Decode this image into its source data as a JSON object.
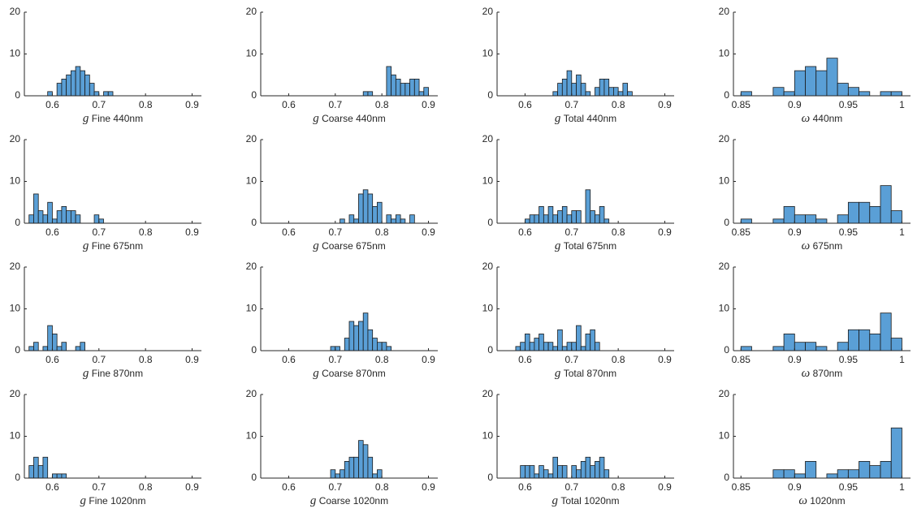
{
  "chart_data": [
    {
      "type": "histogram",
      "xlabel_symbol": "g",
      "xlabel": "Fine 440nm",
      "color": "#5a9fd6",
      "bins": [
        0.55,
        0.56,
        0.57,
        0.58,
        0.59,
        0.6,
        0.61,
        0.62,
        0.63,
        0.64,
        0.65,
        0.66,
        0.67,
        0.68,
        0.69,
        0.7,
        0.71,
        0.72,
        0.73,
        0.74,
        0.75,
        0.76,
        0.77,
        0.78,
        0.79,
        0.8,
        0.81,
        0.82,
        0.83,
        0.84,
        0.85,
        0.86,
        0.87,
        0.88,
        0.89,
        0.9,
        0.91
      ],
      "values": [
        0,
        0,
        0,
        0,
        1,
        0,
        3,
        4,
        5,
        6,
        7,
        6,
        5,
        3,
        1,
        0,
        1,
        1,
        0,
        0,
        0,
        0,
        0,
        0,
        0,
        0,
        0,
        0,
        0,
        0,
        0,
        0,
        0,
        0,
        0,
        0
      ],
      "xlim": [
        0.54,
        0.92
      ],
      "ylim": [
        0,
        20
      ],
      "xticks": [
        0.6,
        0.7,
        0.8,
        0.9
      ],
      "yticks": [
        0,
        10,
        20
      ]
    },
    {
      "type": "histogram",
      "xlabel_symbol": "g",
      "xlabel": "Coarse 440nm",
      "color": "#5a9fd6",
      "bins": [
        0.55,
        0.56,
        0.57,
        0.58,
        0.59,
        0.6,
        0.61,
        0.62,
        0.63,
        0.64,
        0.65,
        0.66,
        0.67,
        0.68,
        0.69,
        0.7,
        0.71,
        0.72,
        0.73,
        0.74,
        0.75,
        0.76,
        0.77,
        0.78,
        0.79,
        0.8,
        0.81,
        0.82,
        0.83,
        0.84,
        0.85,
        0.86,
        0.87,
        0.88,
        0.89,
        0.9,
        0.91
      ],
      "values": [
        0,
        0,
        0,
        0,
        0,
        0,
        0,
        0,
        0,
        0,
        0,
        0,
        0,
        0,
        0,
        0,
        0,
        0,
        0,
        0,
        0,
        1,
        1,
        0,
        0,
        0,
        7,
        5,
        4,
        3,
        3,
        4,
        4,
        1,
        2,
        0
      ],
      "xlim": [
        0.54,
        0.92
      ],
      "ylim": [
        0,
        20
      ],
      "xticks": [
        0.6,
        0.7,
        0.8,
        0.9
      ],
      "yticks": [
        0,
        10,
        20
      ]
    },
    {
      "type": "histogram",
      "xlabel_symbol": "g",
      "xlabel": "Total 440nm",
      "color": "#5a9fd6",
      "bins": [
        0.55,
        0.56,
        0.57,
        0.58,
        0.59,
        0.6,
        0.61,
        0.62,
        0.63,
        0.64,
        0.65,
        0.66,
        0.67,
        0.68,
        0.69,
        0.7,
        0.71,
        0.72,
        0.73,
        0.74,
        0.75,
        0.76,
        0.77,
        0.78,
        0.79,
        0.8,
        0.81,
        0.82,
        0.83,
        0.84,
        0.85,
        0.86,
        0.87,
        0.88,
        0.89,
        0.9,
        0.91
      ],
      "values": [
        0,
        0,
        0,
        0,
        0,
        0,
        0,
        0,
        0,
        0,
        0,
        1,
        3,
        4,
        6,
        3,
        5,
        3,
        1,
        0,
        2,
        4,
        4,
        2,
        2,
        1,
        3,
        1,
        0,
        0,
        0,
        0,
        0,
        0,
        0,
        0
      ],
      "xlim": [
        0.54,
        0.92
      ],
      "ylim": [
        0,
        20
      ],
      "xticks": [
        0.6,
        0.7,
        0.8,
        0.9
      ],
      "yticks": [
        0,
        10,
        20
      ]
    },
    {
      "type": "histogram",
      "xlabel_symbol": "ω",
      "xlabel": "440nm",
      "color": "#5a9fd6",
      "bins": [
        0.85,
        0.86,
        0.87,
        0.88,
        0.89,
        0.9,
        0.91,
        0.92,
        0.93,
        0.94,
        0.95,
        0.96,
        0.97,
        0.98,
        0.99,
        1.0,
        1.01
      ],
      "values": [
        1,
        0,
        0,
        2,
        1,
        6,
        7,
        6,
        9,
        3,
        2,
        1,
        0,
        1,
        1,
        0
      ],
      "xlim": [
        0.843,
        1.008
      ],
      "ylim": [
        0,
        20
      ],
      "xticks": [
        0.85,
        0.9,
        0.95,
        1
      ],
      "yticks": [
        0,
        10,
        20
      ]
    },
    {
      "type": "histogram",
      "xlabel_symbol": "g",
      "xlabel": "Fine 675nm",
      "color": "#5a9fd6",
      "bins": [
        0.55,
        0.56,
        0.57,
        0.58,
        0.59,
        0.6,
        0.61,
        0.62,
        0.63,
        0.64,
        0.65,
        0.66,
        0.67,
        0.68,
        0.69,
        0.7,
        0.71,
        0.72,
        0.73,
        0.74,
        0.75,
        0.76,
        0.77,
        0.78,
        0.79,
        0.8,
        0.81,
        0.82,
        0.83,
        0.84,
        0.85,
        0.86,
        0.87,
        0.88,
        0.89,
        0.9,
        0.91
      ],
      "values": [
        2,
        7,
        3,
        2,
        5,
        1,
        3,
        4,
        3,
        3,
        2,
        0,
        0,
        0,
        2,
        1,
        0,
        0,
        0,
        0,
        0,
        0,
        0,
        0,
        0,
        0,
        0,
        0,
        0,
        0,
        0,
        0,
        0,
        0,
        0,
        0
      ],
      "xlim": [
        0.54,
        0.92
      ],
      "ylim": [
        0,
        20
      ],
      "xticks": [
        0.6,
        0.7,
        0.8,
        0.9
      ],
      "yticks": [
        0,
        10,
        20
      ]
    },
    {
      "type": "histogram",
      "xlabel_symbol": "g",
      "xlabel": "Coarse 675nm",
      "color": "#5a9fd6",
      "bins": [
        0.55,
        0.56,
        0.57,
        0.58,
        0.59,
        0.6,
        0.61,
        0.62,
        0.63,
        0.64,
        0.65,
        0.66,
        0.67,
        0.68,
        0.69,
        0.7,
        0.71,
        0.72,
        0.73,
        0.74,
        0.75,
        0.76,
        0.77,
        0.78,
        0.79,
        0.8,
        0.81,
        0.82,
        0.83,
        0.84,
        0.85,
        0.86,
        0.87,
        0.88,
        0.89,
        0.9,
        0.91
      ],
      "values": [
        0,
        0,
        0,
        0,
        0,
        0,
        0,
        0,
        0,
        0,
        0,
        0,
        0,
        0,
        0,
        0,
        1,
        0,
        2,
        1,
        7,
        8,
        7,
        4,
        5,
        0,
        2,
        1,
        2,
        1,
        0,
        2,
        0,
        0,
        0,
        0
      ],
      "xlim": [
        0.54,
        0.92
      ],
      "ylim": [
        0,
        20
      ],
      "xticks": [
        0.6,
        0.7,
        0.8,
        0.9
      ],
      "yticks": [
        0,
        10,
        20
      ]
    },
    {
      "type": "histogram",
      "xlabel_symbol": "g",
      "xlabel": "Total 675nm",
      "color": "#5a9fd6",
      "bins": [
        0.55,
        0.56,
        0.57,
        0.58,
        0.59,
        0.6,
        0.61,
        0.62,
        0.63,
        0.64,
        0.65,
        0.66,
        0.67,
        0.68,
        0.69,
        0.7,
        0.71,
        0.72,
        0.73,
        0.74,
        0.75,
        0.76,
        0.77,
        0.78,
        0.79,
        0.8,
        0.81,
        0.82,
        0.83,
        0.84,
        0.85,
        0.86,
        0.87,
        0.88,
        0.89,
        0.9,
        0.91
      ],
      "values": [
        0,
        0,
        0,
        0,
        0,
        1,
        2,
        2,
        4,
        2,
        4,
        2,
        3,
        4,
        2,
        3,
        3,
        0,
        8,
        3,
        2,
        4,
        1,
        0,
        0,
        0,
        0,
        0,
        0,
        0,
        0,
        0,
        0,
        0,
        0,
        0
      ],
      "xlim": [
        0.54,
        0.92
      ],
      "ylim": [
        0,
        20
      ],
      "xticks": [
        0.6,
        0.7,
        0.8,
        0.9
      ],
      "yticks": [
        0,
        10,
        20
      ]
    },
    {
      "type": "histogram",
      "xlabel_symbol": "ω",
      "xlabel": "675nm",
      "color": "#5a9fd6",
      "bins": [
        0.85,
        0.86,
        0.87,
        0.88,
        0.89,
        0.9,
        0.91,
        0.92,
        0.93,
        0.94,
        0.95,
        0.96,
        0.97,
        0.98,
        0.99,
        1.0,
        1.01
      ],
      "values": [
        1,
        0,
        0,
        1,
        4,
        2,
        2,
        1,
        0,
        2,
        5,
        5,
        4,
        9,
        3,
        0
      ],
      "xlim": [
        0.843,
        1.008
      ],
      "ylim": [
        0,
        20
      ],
      "xticks": [
        0.85,
        0.9,
        0.95,
        1
      ],
      "yticks": [
        0,
        10,
        20
      ]
    },
    {
      "type": "histogram",
      "xlabel_symbol": "g",
      "xlabel": "Fine 870nm",
      "color": "#5a9fd6",
      "bins": [
        0.55,
        0.56,
        0.57,
        0.58,
        0.59,
        0.6,
        0.61,
        0.62,
        0.63,
        0.64,
        0.65,
        0.66,
        0.67,
        0.68,
        0.69,
        0.7,
        0.71,
        0.72,
        0.73,
        0.74,
        0.75,
        0.76,
        0.77,
        0.78,
        0.79,
        0.8,
        0.81,
        0.82,
        0.83,
        0.84,
        0.85,
        0.86,
        0.87,
        0.88,
        0.89,
        0.9,
        0.91
      ],
      "values": [
        1,
        2,
        0,
        1,
        6,
        4,
        1,
        2,
        0,
        0,
        1,
        2,
        0,
        0,
        0,
        0,
        0,
        0,
        0,
        0,
        0,
        0,
        0,
        0,
        0,
        0,
        0,
        0,
        0,
        0,
        0,
        0,
        0,
        0,
        0,
        0
      ],
      "xlim": [
        0.54,
        0.92
      ],
      "ylim": [
        0,
        20
      ],
      "xticks": [
        0.6,
        0.7,
        0.8,
        0.9
      ],
      "yticks": [
        0,
        10,
        20
      ]
    },
    {
      "type": "histogram",
      "xlabel_symbol": "g",
      "xlabel": "Coarse 870nm",
      "color": "#5a9fd6",
      "bins": [
        0.55,
        0.56,
        0.57,
        0.58,
        0.59,
        0.6,
        0.61,
        0.62,
        0.63,
        0.64,
        0.65,
        0.66,
        0.67,
        0.68,
        0.69,
        0.7,
        0.71,
        0.72,
        0.73,
        0.74,
        0.75,
        0.76,
        0.77,
        0.78,
        0.79,
        0.8,
        0.81,
        0.82,
        0.83,
        0.84,
        0.85,
        0.86,
        0.87,
        0.88,
        0.89,
        0.9,
        0.91
      ],
      "values": [
        0,
        0,
        0,
        0,
        0,
        0,
        0,
        0,
        0,
        0,
        0,
        0,
        0,
        0,
        1,
        1,
        0,
        3,
        7,
        6,
        7,
        9,
        5,
        3,
        2,
        2,
        1,
        0,
        0,
        0,
        0,
        0,
        0,
        0,
        0,
        0
      ],
      "xlim": [
        0.54,
        0.92
      ],
      "ylim": [
        0,
        20
      ],
      "xticks": [
        0.6,
        0.7,
        0.8,
        0.9
      ],
      "yticks": [
        0,
        10,
        20
      ]
    },
    {
      "type": "histogram",
      "xlabel_symbol": "g",
      "xlabel": "Total 870nm",
      "color": "#5a9fd6",
      "bins": [
        0.55,
        0.56,
        0.57,
        0.58,
        0.59,
        0.6,
        0.61,
        0.62,
        0.63,
        0.64,
        0.65,
        0.66,
        0.67,
        0.68,
        0.69,
        0.7,
        0.71,
        0.72,
        0.73,
        0.74,
        0.75,
        0.76,
        0.77,
        0.78,
        0.79,
        0.8,
        0.81,
        0.82,
        0.83,
        0.84,
        0.85,
        0.86,
        0.87,
        0.88,
        0.89,
        0.9,
        0.91
      ],
      "values": [
        0,
        0,
        0,
        1,
        2,
        4,
        2,
        3,
        4,
        2,
        2,
        1,
        5,
        1,
        2,
        2,
        6,
        1,
        4,
        5,
        2,
        0,
        0,
        0,
        0,
        0,
        0,
        0,
        0,
        0,
        0,
        0,
        0,
        0,
        0,
        0
      ],
      "xlim": [
        0.54,
        0.92
      ],
      "ylim": [
        0,
        20
      ],
      "xticks": [
        0.6,
        0.7,
        0.8,
        0.9
      ],
      "yticks": [
        0,
        10,
        20
      ]
    },
    {
      "type": "histogram",
      "xlabel_symbol": "ω",
      "xlabel": "870nm",
      "color": "#5a9fd6",
      "bins": [
        0.85,
        0.86,
        0.87,
        0.88,
        0.89,
        0.9,
        0.91,
        0.92,
        0.93,
        0.94,
        0.95,
        0.96,
        0.97,
        0.98,
        0.99,
        1.0,
        1.01
      ],
      "values": [
        1,
        0,
        0,
        1,
        4,
        2,
        2,
        1,
        0,
        2,
        5,
        5,
        4,
        9,
        3,
        0
      ],
      "xlim": [
        0.843,
        1.008
      ],
      "ylim": [
        0,
        20
      ],
      "xticks": [
        0.85,
        0.9,
        0.95,
        1
      ],
      "yticks": [
        0,
        10,
        20
      ]
    },
    {
      "type": "histogram",
      "xlabel_symbol": "g",
      "xlabel": "Fine 1020nm",
      "color": "#5a9fd6",
      "bins": [
        0.55,
        0.56,
        0.57,
        0.58,
        0.59,
        0.6,
        0.61,
        0.62,
        0.63,
        0.64,
        0.65,
        0.66,
        0.67,
        0.68,
        0.69,
        0.7,
        0.71,
        0.72,
        0.73,
        0.74,
        0.75,
        0.76,
        0.77,
        0.78,
        0.79,
        0.8,
        0.81,
        0.82,
        0.83,
        0.84,
        0.85,
        0.86,
        0.87,
        0.88,
        0.89,
        0.9,
        0.91
      ],
      "values": [
        3,
        5,
        3,
        5,
        0,
        1,
        1,
        1,
        0,
        0,
        0,
        0,
        0,
        0,
        0,
        0,
        0,
        0,
        0,
        0,
        0,
        0,
        0,
        0,
        0,
        0,
        0,
        0,
        0,
        0,
        0,
        0,
        0,
        0,
        0,
        0
      ],
      "xlim": [
        0.54,
        0.92
      ],
      "ylim": [
        0,
        20
      ],
      "xticks": [
        0.6,
        0.7,
        0.8,
        0.9
      ],
      "yticks": [
        0,
        10,
        20
      ]
    },
    {
      "type": "histogram",
      "xlabel_symbol": "g",
      "xlabel": "Coarse 1020nm",
      "color": "#5a9fd6",
      "bins": [
        0.55,
        0.56,
        0.57,
        0.58,
        0.59,
        0.6,
        0.61,
        0.62,
        0.63,
        0.64,
        0.65,
        0.66,
        0.67,
        0.68,
        0.69,
        0.7,
        0.71,
        0.72,
        0.73,
        0.74,
        0.75,
        0.76,
        0.77,
        0.78,
        0.79,
        0.8,
        0.81,
        0.82,
        0.83,
        0.84,
        0.85,
        0.86,
        0.87,
        0.88,
        0.89,
        0.9,
        0.91
      ],
      "values": [
        0,
        0,
        0,
        0,
        0,
        0,
        0,
        0,
        0,
        0,
        0,
        0,
        0,
        0,
        2,
        1,
        2,
        4,
        5,
        5,
        9,
        8,
        5,
        1,
        2,
        0,
        0,
        0,
        0,
        0,
        0,
        0,
        0,
        0,
        0,
        0
      ],
      "xlim": [
        0.54,
        0.92
      ],
      "ylim": [
        0,
        20
      ],
      "xticks": [
        0.6,
        0.7,
        0.8,
        0.9
      ],
      "yticks": [
        0,
        10,
        20
      ]
    },
    {
      "type": "histogram",
      "xlabel_symbol": "g",
      "xlabel": "Total 1020nm",
      "color": "#5a9fd6",
      "bins": [
        0.55,
        0.56,
        0.57,
        0.58,
        0.59,
        0.6,
        0.61,
        0.62,
        0.63,
        0.64,
        0.65,
        0.66,
        0.67,
        0.68,
        0.69,
        0.7,
        0.71,
        0.72,
        0.73,
        0.74,
        0.75,
        0.76,
        0.77,
        0.78,
        0.79,
        0.8,
        0.81,
        0.82,
        0.83,
        0.84,
        0.85,
        0.86,
        0.87,
        0.88,
        0.89,
        0.9,
        0.91
      ],
      "values": [
        0,
        0,
        0,
        0,
        3,
        3,
        3,
        1,
        3,
        2,
        1,
        5,
        3,
        3,
        0,
        3,
        2,
        4,
        5,
        3,
        4,
        5,
        2,
        0,
        0,
        0,
        0,
        0,
        0,
        0,
        0,
        0,
        0,
        0,
        0,
        0
      ],
      "xlim": [
        0.54,
        0.92
      ],
      "ylim": [
        0,
        20
      ],
      "xticks": [
        0.6,
        0.7,
        0.8,
        0.9
      ],
      "yticks": [
        0,
        10,
        20
      ]
    },
    {
      "type": "histogram",
      "xlabel_symbol": "ω",
      "xlabel": "1020nm",
      "color": "#5a9fd6",
      "bins": [
        0.85,
        0.86,
        0.87,
        0.88,
        0.89,
        0.9,
        0.91,
        0.92,
        0.93,
        0.94,
        0.95,
        0.96,
        0.97,
        0.98,
        0.99,
        1.0,
        1.01
      ],
      "values": [
        0,
        0,
        0,
        2,
        2,
        1,
        4,
        0,
        1,
        2,
        2,
        4,
        3,
        4,
        12,
        0
      ],
      "xlim": [
        0.843,
        1.008
      ],
      "ylim": [
        0,
        20
      ],
      "xticks": [
        0.85,
        0.9,
        0.95,
        1
      ],
      "yticks": [
        0,
        10,
        20
      ]
    }
  ]
}
